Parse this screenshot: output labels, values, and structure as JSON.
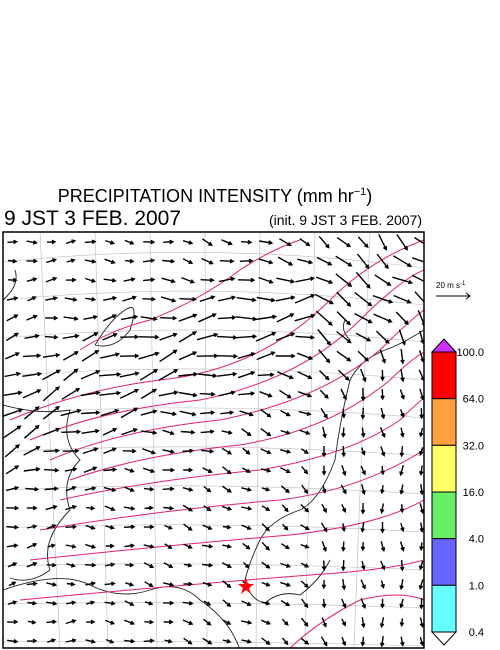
{
  "title": {
    "text": "PRECIPITATION INTENSITY (mm hr",
    "exponent": "−1",
    "close": ")"
  },
  "valid_time": "9 JST 3 FEB. 2007",
  "init_time": "(init. 9 JST 3 FEB. 2007)",
  "vector_scale": {
    "text": "20 m s",
    "exponent": "-1"
  },
  "colorbar": {
    "ticks": [
      {
        "value": 100,
        "label": "100.0"
      },
      {
        "value": 64,
        "label": "64.0"
      },
      {
        "value": 32,
        "label": "32.0"
      },
      {
        "value": 16,
        "label": "16.0"
      },
      {
        "value": 4,
        "label": "4.0"
      },
      {
        "value": 1,
        "label": "1.0"
      },
      {
        "value": 0.4,
        "label": "0.4"
      }
    ],
    "colors": [
      "#ff0000",
      "#ffa040",
      "#ffff66",
      "#66ee66",
      "#6666ff",
      "#66ffff"
    ],
    "over_color": "#cc33ff",
    "under_color": "#ffffff"
  }
}
